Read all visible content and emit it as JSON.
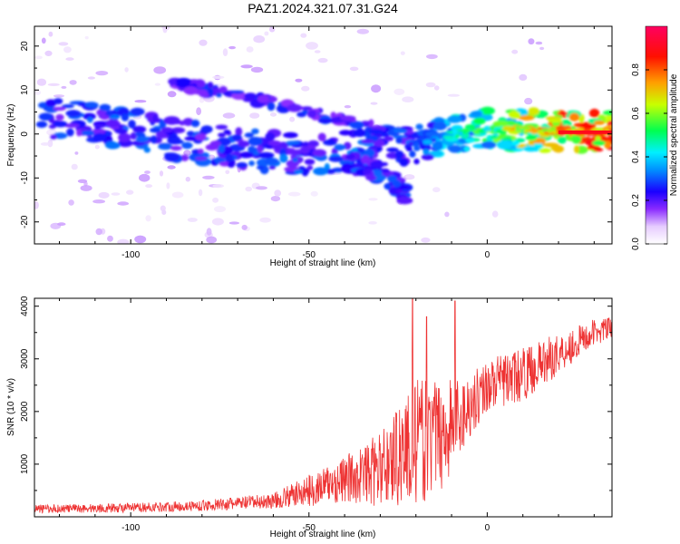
{
  "figure_title": "PAZ1.2024.321.07.31.G24",
  "chart_data": [
    {
      "type": "heatmap",
      "title": "PAZ1.2024.321.07.31.G24",
      "xlabel": "Height of straight line (km)",
      "ylabel": "Frequency (Hz)",
      "xlim": [
        -127,
        35
      ],
      "ylim": [
        -25,
        24.5
      ],
      "xticks": [
        -100,
        -50,
        0
      ],
      "yticks": [
        -20,
        -10,
        0,
        10,
        20
      ],
      "colorbar": {
        "label": "Normalized spectral amplitude",
        "range": [
          0,
          1
        ],
        "ticks": [
          "0.0",
          "0.2",
          "0.4",
          "0.6",
          "0.8"
        ],
        "colormap": [
          "#ffffff",
          "#b46cff",
          "#5a00ff",
          "#0a00ff",
          "#0080ff",
          "#00f0ff",
          "#00ff3c",
          "#c8ff00",
          "#ff9a00",
          "#ff0000",
          "#ff0050"
        ]
      },
      "ridge": {
        "description": "main frequency ridge: center frequency (Hz) vs height (km)",
        "x": [
          -125,
          -110,
          -100,
          -90,
          -80,
          -70,
          -60,
          -50,
          -40,
          -30,
          -25,
          -20,
          -10,
          0,
          10,
          20,
          35
        ],
        "y": [
          4,
          2,
          1,
          -1,
          -2,
          -3,
          -4,
          -5,
          -4,
          -3,
          -2,
          -2,
          0,
          1,
          1,
          0.5,
          0.5
        ],
        "amplitude": [
          0.3,
          0.3,
          0.32,
          0.3,
          0.3,
          0.3,
          0.32,
          0.3,
          0.35,
          0.3,
          0.3,
          0.3,
          0.45,
          0.55,
          0.7,
          0.85,
          0.9
        ]
      },
      "secondary_branch": {
        "description": "upper branch from ~10 Hz descending",
        "x": [
          -88,
          -75,
          -60,
          -50,
          -40,
          -30
        ],
        "y": [
          11,
          10,
          7,
          5,
          3,
          1
        ]
      },
      "lower_branch": {
        "description": "lower branch descending to ~-16 Hz",
        "x": [
          -40,
          -30,
          -25,
          -22
        ],
        "y": [
          -6,
          -9,
          -12,
          -15
        ]
      }
    },
    {
      "type": "line",
      "xlabel": "Height of straight line (km)",
      "ylabel": "SNR (10 * v/v)",
      "xlim": [
        -127,
        35
      ],
      "ylim": [
        0,
        4150
      ],
      "xticks": [
        -100,
        -50,
        0
      ],
      "yticks": [
        1000,
        2000,
        3000,
        4000
      ],
      "color": "#ee3333",
      "envelope": {
        "x": [
          -127,
          -100,
          -80,
          -60,
          -50,
          -40,
          -30,
          -25,
          -20,
          -15,
          -10,
          -5,
          0,
          10,
          20,
          30,
          35
        ],
        "mean": [
          150,
          170,
          210,
          300,
          500,
          700,
          900,
          1200,
          1400,
          1500,
          1700,
          2100,
          2500,
          2700,
          3100,
          3500,
          3600
        ],
        "amp": [
          80,
          90,
          100,
          150,
          300,
          450,
          700,
          1000,
          1200,
          1100,
          1000,
          600,
          500,
          500,
          400,
          250,
          200
        ]
      },
      "peaks": {
        "x": [
          -21,
          -17,
          -9
        ],
        "y": [
          4150,
          3800,
          4100
        ]
      }
    }
  ]
}
